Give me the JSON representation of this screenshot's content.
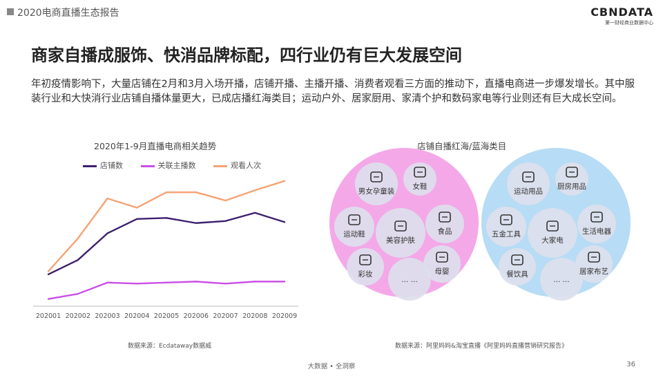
{
  "header": {
    "doc_title": "2020电商直播生态报告",
    "brand_name": "CBNDATA",
    "brand_sub": "第一财经商业数据中心"
  },
  "headline": "商家自播成服饰、快消品牌标配，四行业仍有巨大发展空间",
  "intro": "年初疫情影响下，大量店铺在2月和3月入场开播，店铺开播、主播开播、消费者观看三方面的推动下，直播电商进一步爆发增长。其中服装行业和大快消行业店铺自播体量更大，已成店播红海类目；运动户外、居家厨用、家清个护和数码家电等行业则还有巨大成长空间。",
  "chart_data": [
    {
      "type": "line",
      "title": "2020年1-9月直播电商相关趋势",
      "categories": [
        "202001",
        "202002",
        "202003",
        "202004",
        "202005",
        "202006",
        "202007",
        "202008",
        "202009"
      ],
      "series": [
        {
          "name": "店铺数",
          "color": "#3d1f6e",
          "values": [
            31,
            45,
            71,
            85,
            86,
            81,
            83,
            91,
            82
          ]
        },
        {
          "name": "关联主播数",
          "color": "#c94fe6",
          "values": [
            7,
            12,
            23,
            22,
            23,
            24,
            22,
            24,
            24
          ]
        },
        {
          "name": "观看人次",
          "color": "#f4a373",
          "values": [
            34,
            66,
            105,
            96,
            111,
            111,
            103,
            113,
            122
          ]
        }
      ],
      "ylim": [
        0,
        130
      ],
      "grid": false,
      "legend": "top"
    }
  ],
  "diagram": {
    "title": "店铺自播红海/蓝海类目",
    "red_sea": {
      "color": "#f4a8e8",
      "items": [
        {
          "label": "男女孕童装",
          "icon": "clothes-icon"
        },
        {
          "label": "女鞋",
          "icon": "heel-shoe-icon"
        },
        {
          "label": "运动鞋",
          "icon": "sneaker-icon"
        },
        {
          "label": "美容护肤",
          "icon": "face-icon"
        },
        {
          "label": "食品",
          "icon": "food-icon"
        },
        {
          "label": "彩妆",
          "icon": "lipstick-icon"
        },
        {
          "label": "... ...",
          "icon": ""
        },
        {
          "label": "母婴",
          "icon": "baby-bottle-icon"
        }
      ]
    },
    "blue_sea": {
      "color": "#b7dcf5",
      "items": [
        {
          "label": "运动用品",
          "icon": "ball-icon"
        },
        {
          "label": "厨房用品",
          "icon": "pot-icon"
        },
        {
          "label": "五金工具",
          "icon": "tools-icon"
        },
        {
          "label": "大家电",
          "icon": "washer-icon"
        },
        {
          "label": "生活电器",
          "icon": "kettle-icon"
        },
        {
          "label": "餐饮具",
          "icon": "cutlery-icon"
        },
        {
          "label": "... ...",
          "icon": ""
        },
        {
          "label": "居家布艺",
          "icon": "curtain-icon"
        }
      ]
    }
  },
  "sources": {
    "left": "数据来源：Ecdataway数据威",
    "right": "数据来源：阿里妈妈&淘宝直播《阿里妈妈直播营销研究报告》"
  },
  "footer": {
    "slogan": "大数据 • 全洞察",
    "page": "36"
  }
}
